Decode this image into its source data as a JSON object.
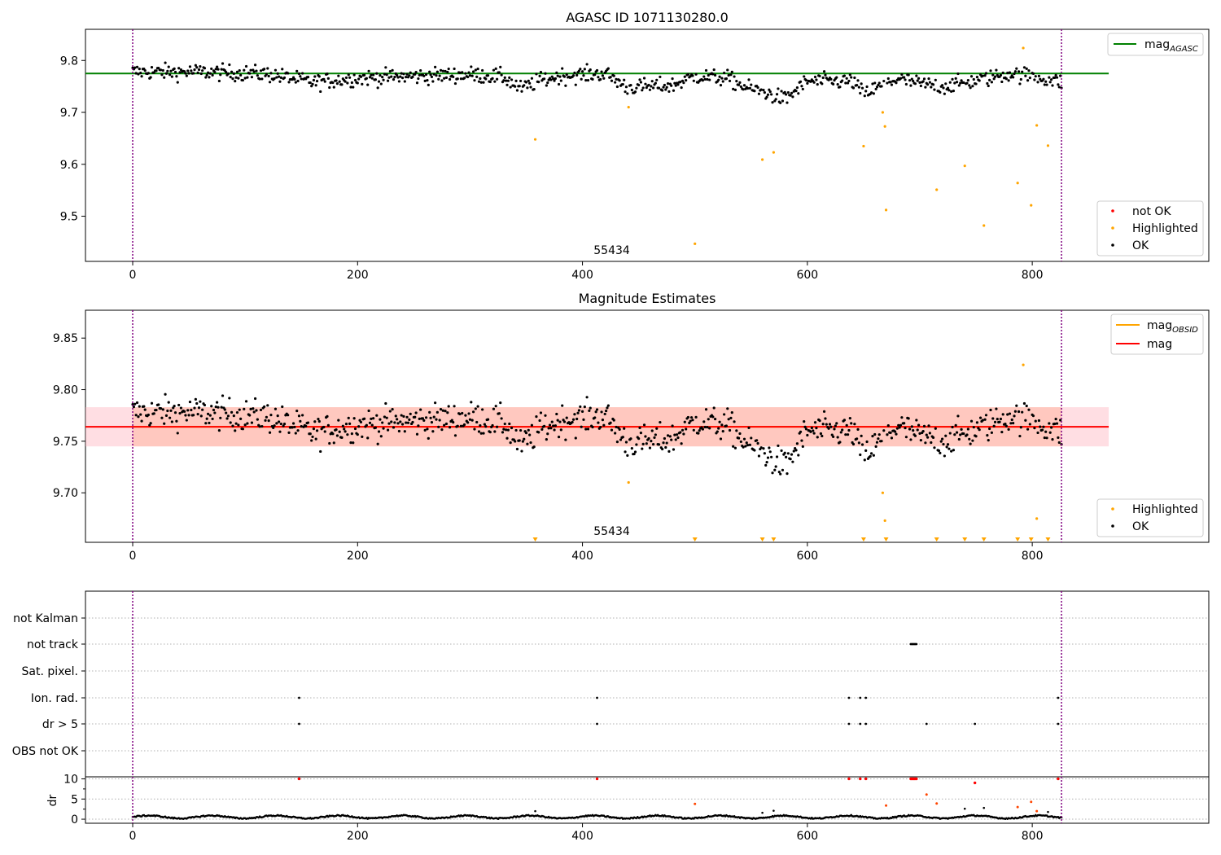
{
  "chart_data": [
    {
      "type": "scatter",
      "title": "AGASC ID 1071130280.0",
      "xlim": [
        -42,
        957
      ],
      "ylim": [
        9.413,
        9.86
      ],
      "xticks": [
        0,
        200,
        400,
        600,
        800
      ],
      "yticks": [
        9.5,
        9.6,
        9.7,
        9.8
      ],
      "ytick_labels": [
        "9.5",
        "9.6",
        "9.7",
        "9.8"
      ],
      "annotation": "55434",
      "annotation_x": 413,
      "vlines": [
        0,
        826
      ],
      "hline": {
        "name": "mag_AGASC",
        "legend_main": "mag",
        "legend_sub": "AGASC",
        "value": 9.775,
        "xmax": 868,
        "color": "#008000"
      },
      "legend_line": [
        "mag_AGASC"
      ],
      "legend_points": [
        "not OK",
        "Highlighted",
        "OK"
      ],
      "highlighted": [
        {
          "x": 358,
          "y": 9.648
        },
        {
          "x": 441,
          "y": 9.71
        },
        {
          "x": 500,
          "y": 9.447
        },
        {
          "x": 560,
          "y": 9.609
        },
        {
          "x": 570,
          "y": 9.623
        },
        {
          "x": 650,
          "y": 9.635
        },
        {
          "x": 667,
          "y": 9.7
        },
        {
          "x": 669,
          "y": 9.673
        },
        {
          "x": 670,
          "y": 9.512
        },
        {
          "x": 715,
          "y": 9.551
        },
        {
          "x": 740,
          "y": 9.597
        },
        {
          "x": 757,
          "y": 9.482
        },
        {
          "x": 787,
          "y": 9.564
        },
        {
          "x": 792,
          "y": 9.824
        },
        {
          "x": 799,
          "y": 9.521
        },
        {
          "x": 804,
          "y": 9.675
        },
        {
          "x": 814,
          "y": 9.636
        }
      ]
    },
    {
      "type": "scatter",
      "title": "Magnitude Estimates",
      "xlim": [
        -42,
        957
      ],
      "ylim": [
        9.652,
        9.877
      ],
      "xticks": [
        0,
        200,
        400,
        600,
        800
      ],
      "yticks": [
        9.7,
        9.75,
        9.8,
        9.85
      ],
      "ytick_labels": [
        "9.70",
        "9.75",
        "9.80",
        "9.85"
      ],
      "annotation": "55434",
      "annotation_x": 413,
      "vlines": [
        0,
        826
      ],
      "mag_obsid": {
        "name": "mag_OBSID",
        "legend_main": "mag",
        "legend_sub": "OBSID",
        "value": 9.764,
        "color": "#ffa500"
      },
      "mag": {
        "name": "mag",
        "value": 9.764,
        "band": [
          9.745,
          9.783
        ],
        "color": "#ff0000"
      },
      "legend_line": [
        "mag_OBSID",
        "mag"
      ],
      "legend_points": [
        "Highlighted",
        "OK"
      ],
      "highlighted": [
        {
          "x": 441,
          "y": 9.71
        },
        {
          "x": 667,
          "y": 9.7
        },
        {
          "x": 669,
          "y": 9.673
        },
        {
          "x": 792,
          "y": 9.824
        },
        {
          "x": 804,
          "y": 9.675
        }
      ],
      "below_range_x": [
        358,
        500,
        560,
        570,
        650,
        670,
        715,
        740,
        757,
        787,
        799,
        814
      ]
    },
    {
      "type": "scatter",
      "title": "",
      "flag_labels": [
        "not Kalman",
        "not track",
        "Sat. pixel.",
        "Ion. rad.",
        "dr > 5",
        "OBS not OK"
      ],
      "flags": {
        "not track": [
          692,
          693,
          694,
          695,
          696,
          697
        ],
        "Ion. rad.": [
          148,
          413,
          637,
          647,
          652,
          823
        ],
        "dr > 5": [
          148,
          413,
          637,
          647,
          652,
          706,
          749,
          823
        ]
      },
      "dr_ylabel": "dr",
      "dr_yticks": [
        0,
        5,
        10
      ],
      "dr_ylim": [
        -1,
        10.5
      ],
      "dr_red": [
        {
          "x": 148,
          "y": 10
        },
        {
          "x": 413,
          "y": 10
        },
        {
          "x": 637,
          "y": 10
        },
        {
          "x": 647,
          "y": 10
        },
        {
          "x": 652,
          "y": 10
        },
        {
          "x": 692,
          "y": 10
        },
        {
          "x": 693,
          "y": 10
        },
        {
          "x": 694,
          "y": 10
        },
        {
          "x": 695,
          "y": 10
        },
        {
          "x": 696,
          "y": 10
        },
        {
          "x": 697,
          "y": 10
        },
        {
          "x": 749,
          "y": 9
        },
        {
          "x": 823,
          "y": 10
        }
      ],
      "dr_orange": [
        {
          "x": 500,
          "y": 3.8
        },
        {
          "x": 670,
          "y": 3.4
        },
        {
          "x": 706,
          "y": 6.1
        },
        {
          "x": 715,
          "y": 3.9
        },
        {
          "x": 787,
          "y": 3.0
        },
        {
          "x": 799,
          "y": 4.3
        },
        {
          "x": 804,
          "y": 2.0
        }
      ],
      "dr_black_max_x": 826,
      "xticks": [
        0,
        200,
        400,
        600,
        800
      ],
      "vlines": [
        0,
        826
      ]
    }
  ]
}
